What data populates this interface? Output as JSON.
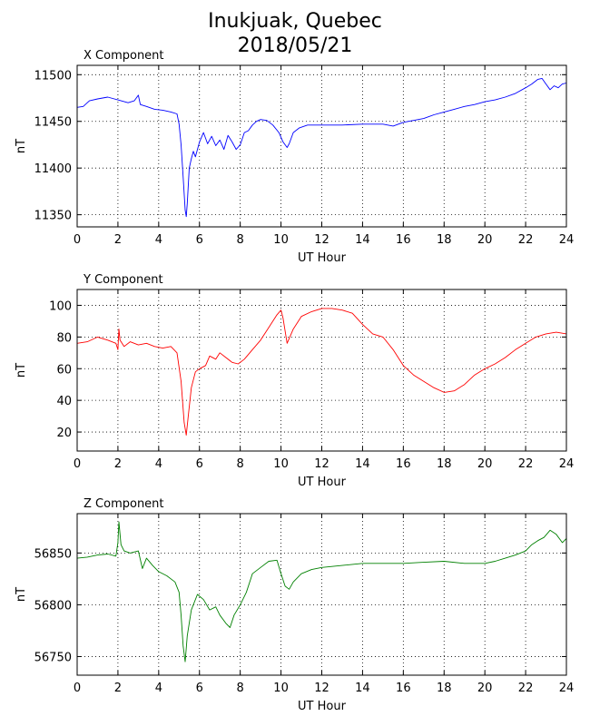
{
  "title_line1": "Inukjuak, Quebec",
  "title_line2": "2018/05/21",
  "chart_data": [
    {
      "type": "line",
      "title": "X Component",
      "xlabel": "UT Hour",
      "ylabel": "nT",
      "xlim": [
        0,
        24
      ],
      "ylim": [
        11337,
        11510
      ],
      "xticks": [
        0,
        2,
        4,
        6,
        8,
        10,
        12,
        14,
        16,
        18,
        20,
        22,
        24
      ],
      "yticks": [
        11350,
        11400,
        11450,
        11500
      ],
      "grid": true,
      "color": "#0000ff",
      "series": [
        {
          "x": [
            0,
            0.3,
            0.6,
            1,
            1.5,
            2,
            2.5,
            2.8,
            3,
            3.1,
            3.4,
            3.8,
            4.2,
            4.6,
            4.9,
            5.0,
            5.1,
            5.2,
            5.3,
            5.35,
            5.4,
            5.5,
            5.6,
            5.7,
            5.8,
            6.0,
            6.2,
            6.4,
            6.6,
            6.8,
            7.0,
            7.2,
            7.4,
            7.6,
            7.8,
            8.0,
            8.2,
            8.4,
            8.6,
            8.8,
            9.0,
            9.3,
            9.6,
            9.9,
            10.1,
            10.3,
            10.4,
            10.6,
            10.9,
            11.3,
            12,
            13,
            14,
            15,
            15.5,
            16,
            16.5,
            17,
            17.5,
            18,
            18.5,
            19,
            19.5,
            20,
            20.5,
            21,
            21.5,
            22,
            22.3,
            22.6,
            22.8,
            23,
            23.2,
            23.4,
            23.6,
            23.8,
            24
          ],
          "y": [
            11465,
            11466,
            11472,
            11474,
            11476,
            11473,
            11470,
            11472,
            11478,
            11468,
            11466,
            11463,
            11462,
            11460,
            11458,
            11447,
            11425,
            11390,
            11355,
            11348,
            11362,
            11400,
            11410,
            11418,
            11412,
            11428,
            11438,
            11426,
            11434,
            11424,
            11430,
            11420,
            11435,
            11428,
            11420,
            11425,
            11438,
            11440,
            11446,
            11450,
            11452,
            11451,
            11446,
            11438,
            11428,
            11422,
            11426,
            11438,
            11443,
            11446,
            11446,
            11446,
            11447,
            11447,
            11445,
            11449,
            11451,
            11453,
            11457,
            11460,
            11463,
            11466,
            11468,
            11471,
            11473,
            11476,
            11480,
            11486,
            11490,
            11495,
            11496,
            11490,
            11484,
            11488,
            11486,
            11490,
            11491
          ]
        }
      ]
    },
    {
      "type": "line",
      "title": "Y Component",
      "xlabel": "UT Hour",
      "ylabel": "nT",
      "xlim": [
        0,
        24
      ],
      "ylim": [
        8,
        110
      ],
      "xticks": [
        0,
        2,
        4,
        6,
        8,
        10,
        12,
        14,
        16,
        18,
        20,
        22,
        24
      ],
      "yticks": [
        20,
        40,
        60,
        80,
        100
      ],
      "grid": true,
      "color": "#ff0000",
      "series": [
        {
          "x": [
            0,
            0.5,
            1,
            1.5,
            1.9,
            2.0,
            2.05,
            2.1,
            2.3,
            2.6,
            3,
            3.4,
            3.8,
            4.2,
            4.6,
            4.9,
            5.1,
            5.25,
            5.35,
            5.45,
            5.6,
            5.8,
            6.0,
            6.3,
            6.5,
            6.8,
            7.0,
            7.3,
            7.6,
            7.9,
            8.2,
            8.6,
            9.0,
            9.4,
            9.8,
            10.0,
            10.1,
            10.3,
            10.6,
            11,
            11.5,
            12,
            12.5,
            13,
            13.5,
            14,
            14.5,
            15,
            15.5,
            16,
            16.5,
            17,
            17.5,
            18,
            18.5,
            19,
            19.5,
            20,
            20.5,
            21,
            21.5,
            22,
            22.5,
            23,
            23.5,
            24
          ],
          "y": [
            76,
            77,
            80,
            78,
            76,
            72,
            85,
            78,
            74,
            77,
            75,
            76,
            74,
            73,
            74,
            70,
            52,
            26,
            18,
            30,
            48,
            58,
            60,
            62,
            68,
            66,
            70,
            67,
            64,
            63,
            66,
            72,
            78,
            86,
            94,
            97,
            92,
            76,
            85,
            93,
            96,
            98,
            98,
            97,
            95,
            88,
            82,
            80,
            72,
            62,
            56,
            52,
            48,
            45,
            46,
            50,
            56,
            60,
            63,
            67,
            72,
            76,
            80,
            82,
            83,
            82
          ]
        }
      ]
    },
    {
      "type": "line",
      "title": "Z Component",
      "xlabel": "UT Hour",
      "ylabel": "nT",
      "xlim": [
        0,
        24
      ],
      "ylim": [
        56732,
        56888
      ],
      "xticks": [
        0,
        2,
        4,
        6,
        8,
        10,
        12,
        14,
        16,
        18,
        20,
        22,
        24
      ],
      "yticks": [
        56750,
        56800,
        56850
      ],
      "grid": true,
      "color": "#008000",
      "series": [
        {
          "x": [
            0,
            0.5,
            1,
            1.5,
            1.9,
            2.0,
            2.05,
            2.15,
            2.3,
            2.6,
            3,
            3.2,
            3.4,
            3.7,
            4,
            4.4,
            4.8,
            5.0,
            5.1,
            5.2,
            5.3,
            5.4,
            5.6,
            5.9,
            6.2,
            6.5,
            6.8,
            7.0,
            7.3,
            7.5,
            7.7,
            8.0,
            8.3,
            8.6,
            9,
            9.4,
            9.8,
            10.0,
            10.2,
            10.4,
            10.6,
            11,
            11.5,
            12,
            13,
            14,
            15,
            16,
            17,
            18,
            19,
            20,
            20.5,
            21,
            21.5,
            22,
            22.3,
            22.6,
            22.9,
            23.2,
            23.5,
            23.8,
            24
          ],
          "y": [
            56845,
            56846,
            56848,
            56849,
            56847,
            56860,
            56880,
            56858,
            56852,
            56850,
            56852,
            56835,
            56845,
            56838,
            56832,
            56828,
            56822,
            56812,
            56790,
            56760,
            56745,
            56770,
            56795,
            56810,
            56805,
            56795,
            56798,
            56790,
            56782,
            56778,
            56790,
            56800,
            56812,
            56830,
            56836,
            56842,
            56843,
            56830,
            56818,
            56815,
            56822,
            56830,
            56834,
            56836,
            56838,
            56840,
            56840,
            56840,
            56841,
            56842,
            56840,
            56840,
            56842,
            56845,
            56848,
            56852,
            56858,
            56862,
            56865,
            56872,
            56868,
            56860,
            56864
          ]
        }
      ]
    }
  ]
}
